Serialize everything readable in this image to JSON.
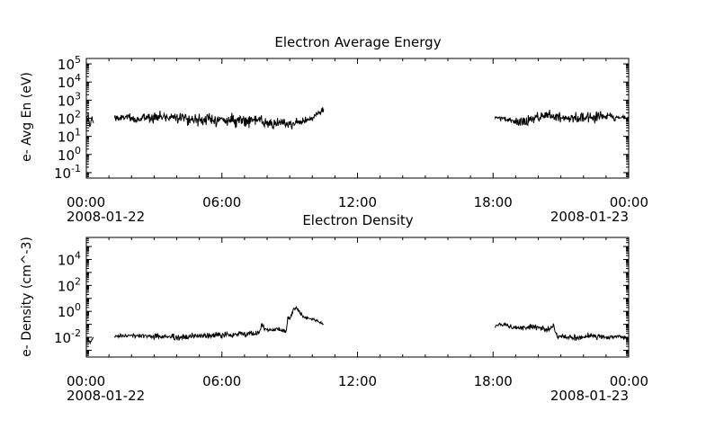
{
  "chart_data": [
    {
      "type": "line",
      "title": "Electron Average Energy",
      "xlabel": "",
      "ylabel": "e- Avg En (eV)",
      "y_scale": "log",
      "ylim": [
        0.05,
        200000
      ],
      "xlim": [
        "2008-01-22 00:00",
        "2008-01-23 00:00"
      ],
      "x_ticks": [
        {
          "time": "2008-01-22 00:00",
          "label": "00:00",
          "date": "2008-01-22"
        },
        {
          "time": "2008-01-22 06:00",
          "label": "06:00",
          "date": ""
        },
        {
          "time": "2008-01-22 12:00",
          "label": "12:00",
          "date": ""
        },
        {
          "time": "2008-01-22 18:00",
          "label": "18:00",
          "date": ""
        },
        {
          "time": "2008-01-23 00:00",
          "label": "00:00",
          "date": "2008-01-23"
        }
      ],
      "y_ticks": [
        {
          "value": 0.1,
          "base": "10",
          "exp": "-1"
        },
        {
          "value": 1,
          "base": "10",
          "exp": "0"
        },
        {
          "value": 10,
          "base": "10",
          "exp": "1"
        },
        {
          "value": 100,
          "base": "10",
          "exp": "2"
        },
        {
          "value": 1000,
          "base": "10",
          "exp": "3"
        },
        {
          "value": 10000,
          "base": "10",
          "exp": "4"
        },
        {
          "value": 100000,
          "base": "10",
          "exp": "5"
        }
      ],
      "grid": false,
      "series": [
        {
          "points": [
            [
              "2008-01-22 00:00",
              50
            ],
            [
              "2008-01-22 00:05",
              160
            ],
            [
              "2008-01-22 00:10",
              30
            ],
            [
              "2008-01-22 00:15",
              120
            ],
            [
              "2008-01-22 00:20",
              35
            ],
            [
              "2008-01-22 01:15",
              120
            ],
            [
              "2008-01-22 01:30",
              90
            ],
            [
              "2008-01-22 01:45",
              130
            ],
            [
              "2008-01-22 02:00",
              80
            ],
            [
              "2008-01-22 02:30",
              100
            ],
            [
              "2008-01-22 03:00",
              130
            ],
            [
              "2008-01-22 03:30",
              110
            ],
            [
              "2008-01-22 04:00",
              140
            ],
            [
              "2008-01-22 04:30",
              90
            ],
            [
              "2008-01-22 05:00",
              85
            ],
            [
              "2008-01-22 05:30",
              90
            ],
            [
              "2008-01-22 06:00",
              80
            ],
            [
              "2008-01-22 06:30",
              75
            ],
            [
              "2008-01-22 07:00",
              85
            ],
            [
              "2008-01-22 07:30",
              80
            ],
            [
              "2008-01-22 07:45",
              70
            ],
            [
              "2008-01-22 08:00",
              45
            ],
            [
              "2008-01-22 08:30",
              50
            ],
            [
              "2008-01-22 09:00",
              50
            ],
            [
              "2008-01-22 09:30",
              60
            ],
            [
              "2008-01-22 10:00",
              100
            ],
            [
              "2008-01-22 10:15",
              200
            ],
            [
              "2008-01-22 10:30",
              320
            ]
          ],
          "noise_sigma": [
            0.16,
            0.32,
            0.2
          ],
          "segment_breaks": [
            "2008-01-22 00:20",
            "2008-01-22 01:15"
          ],
          "visible_gap": [
            "2008-01-22 10:30",
            "2008-01-22 18:05"
          ]
        },
        {
          "points": [
            [
              "2008-01-22 18:05",
              110
            ],
            [
              "2008-01-22 18:30",
              90
            ],
            [
              "2008-01-22 19:00",
              60
            ],
            [
              "2008-01-22 19:30",
              70
            ],
            [
              "2008-01-22 20:00",
              120
            ],
            [
              "2008-01-22 20:30",
              150
            ],
            [
              "2008-01-22 21:00",
              130
            ],
            [
              "2008-01-22 21:30",
              100
            ],
            [
              "2008-01-22 22:00",
              110
            ],
            [
              "2008-01-22 22:30",
              120
            ],
            [
              "2008-01-22 23:00",
              140
            ],
            [
              "2008-01-22 23:30",
              110
            ],
            [
              "2008-01-23 00:00",
              100
            ]
          ],
          "noise_sigma": [
            0.12,
            0.34,
            0.12
          ]
        }
      ]
    },
    {
      "type": "line",
      "title": "Electron Density",
      "xlabel": "",
      "ylabel": "e- Density (cm^-3)",
      "y_scale": "log",
      "ylim": [
        0.0003,
        500000
      ],
      "xlim": [
        "2008-01-22 00:00",
        "2008-01-23 00:00"
      ],
      "x_ticks": [
        {
          "time": "2008-01-22 00:00",
          "label": "00:00",
          "date": "2008-01-22"
        },
        {
          "time": "2008-01-22 06:00",
          "label": "06:00",
          "date": ""
        },
        {
          "time": "2008-01-22 12:00",
          "label": "12:00",
          "date": ""
        },
        {
          "time": "2008-01-22 18:00",
          "label": "18:00",
          "date": ""
        },
        {
          "time": "2008-01-23 00:00",
          "label": "00:00",
          "date": "2008-01-23"
        }
      ],
      "y_ticks": [
        {
          "value": 0.01,
          "base": "10",
          "exp": "-2"
        },
        {
          "value": 1,
          "base": "10",
          "exp": "0"
        },
        {
          "value": 100,
          "base": "10",
          "exp": "2"
        },
        {
          "value": 10000,
          "base": "10",
          "exp": "4"
        }
      ],
      "grid": false,
      "series": [
        {
          "points": [
            [
              "2008-01-22 00:00",
              0.01
            ],
            [
              "2008-01-22 00:10",
              0.004
            ],
            [
              "2008-01-22 00:20",
              0.012
            ],
            [
              "2008-01-22 01:15",
              0.012
            ],
            [
              "2008-01-22 02:00",
              0.014
            ],
            [
              "2008-01-22 03:00",
              0.012
            ],
            [
              "2008-01-22 04:00",
              0.009
            ],
            [
              "2008-01-22 05:00",
              0.013
            ],
            [
              "2008-01-22 06:00",
              0.015
            ],
            [
              "2008-01-22 07:00",
              0.018
            ],
            [
              "2008-01-22 07:40",
              0.025
            ],
            [
              "2008-01-22 07:45",
              0.09
            ],
            [
              "2008-01-22 08:00",
              0.04
            ],
            [
              "2008-01-22 08:30",
              0.04
            ],
            [
              "2008-01-22 08:50",
              0.025
            ],
            [
              "2008-01-22 08:55",
              0.25
            ],
            [
              "2008-01-22 09:05",
              0.5
            ],
            [
              "2008-01-22 09:10",
              1.5
            ],
            [
              "2008-01-22 09:20",
              1.8
            ],
            [
              "2008-01-22 09:35",
              0.4
            ],
            [
              "2008-01-22 09:50",
              0.3
            ],
            [
              "2008-01-22 10:10",
              0.2
            ],
            [
              "2008-01-22 10:30",
              0.1
            ]
          ],
          "noise_sigma": [
            0.1,
            0.24,
            0.12
          ],
          "segment_breaks": [
            "2008-01-22 00:20",
            "2008-01-22 01:15"
          ],
          "visible_gap": [
            "2008-01-22 10:30",
            "2008-01-22 18:05"
          ]
        },
        {
          "points": [
            [
              "2008-01-22 18:05",
              0.08
            ],
            [
              "2008-01-22 18:30",
              0.1
            ],
            [
              "2008-01-22 19:00",
              0.05
            ],
            [
              "2008-01-22 19:30",
              0.06
            ],
            [
              "2008-01-22 20:00",
              0.06
            ],
            [
              "2008-01-22 20:30",
              0.04
            ],
            [
              "2008-01-22 20:40",
              0.09
            ],
            [
              "2008-01-22 20:50",
              0.012
            ],
            [
              "2008-01-22 21:30",
              0.009
            ],
            [
              "2008-01-22 22:00",
              0.01
            ],
            [
              "2008-01-22 22:30",
              0.012
            ],
            [
              "2008-01-22 23:00",
              0.01
            ],
            [
              "2008-01-22 23:30",
              0.011
            ],
            [
              "2008-01-23 00:00",
              0.009
            ]
          ],
          "noise_sigma": [
            0.14,
            0.22,
            0.14
          ]
        }
      ]
    }
  ]
}
